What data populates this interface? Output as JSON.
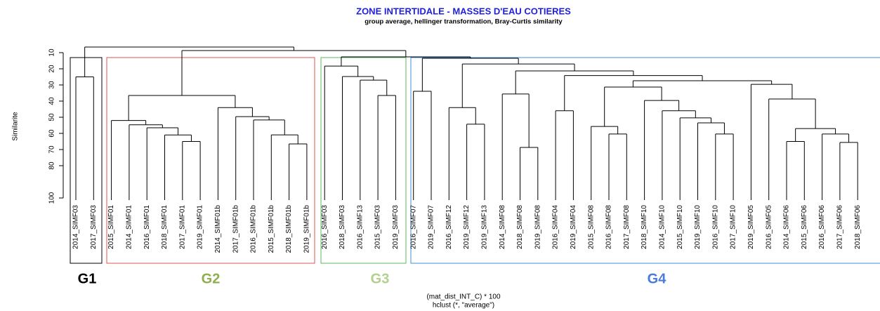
{
  "chart_data": {
    "type": "dendrogram",
    "title": "ZONE INTERTIDALE - MASSES D'EAU COTIERES",
    "subtitle": "group average, hellinger transformation, Bray-Curtis similarity",
    "y_label": "Similarite",
    "x_label": "(mat_dist_INT_C) * 100",
    "x_sublabel": "hclust (*, \"average\")",
    "ylim": [
      5,
      100
    ],
    "yticks": [
      10,
      20,
      30,
      40,
      50,
      60,
      70,
      80,
      100
    ],
    "color": "#000000",
    "title_color": "#1f1fe0",
    "groups": [
      {
        "label": "G1",
        "color": "#000000"
      },
      {
        "label": "G2",
        "color": "#8fae4e"
      },
      {
        "label": "G3",
        "color": "#b3d08f"
      },
      {
        "label": "G4",
        "color": "#4a7bd8"
      }
    ],
    "tree": {
      "height": 6.5,
      "children": [
        {
          "height": 25,
          "children": [
            "2014_SIMF03",
            "2017_SIMF03"
          ]
        },
        {
          "height": 8.7,
          "children": [
            {
              "height": 36.5,
              "children": [
                {
                  "height": 52,
                  "children": [
                    "2015_SIMF01",
                    {
                      "height": 54.7,
                      "children": [
                        "2014_SIMF01",
                        {
                          "height": 56.5,
                          "children": [
                            "2016_SIMF01",
                            {
                              "height": 61,
                              "children": [
                                "2018_SIMF01",
                                {
                                  "height": 65,
                                  "children": [
                                    "2017_SIMF01",
                                    "2019_SIMF01"
                                  ]
                                }
                              ]
                            }
                          ]
                        }
                      ]
                    }
                  ]
                },
                {
                  "height": 44,
                  "children": [
                    "2014_SIMF01b",
                    {
                      "height": 49.6,
                      "children": [
                        "2017_SIMF01b",
                        {
                          "height": 51.7,
                          "children": [
                            "2016_SIMF01b",
                            {
                              "height": 60.9,
                              "children": [
                                "2015_SIMF01b",
                                {
                                  "height": 66.5,
                                  "children": [
                                    "2018_SIMF01b",
                                    "2019_SIMF01b"
                                  ]
                                }
                              ]
                            }
                          ]
                        }
                      ]
                    }
                  ]
                }
              ]
            },
            {
              "height": 12.6,
              "children": [
                {
                  "height": 18.3,
                  "children": [
                    "2016_SIMF03",
                    {
                      "height": 24.8,
                      "children": [
                        "2018_SIMF03",
                        {
                          "height": 27,
                          "children": [
                            "2016_SIMF13",
                            {
                              "height": 36.5,
                              "children": [
                                "2015_SIMF03",
                                "2019_SIMF03"
                              ]
                            }
                          ]
                        }
                      ]
                    }
                  ]
                },
                {
                  "height": 13.5,
                  "children": [
                    {
                      "height": 33.9,
                      "children": [
                        "2016_SIMF07",
                        "2019_SIMF07"
                      ]
                    },
                    {
                      "height": 17,
                      "children": [
                        {
                          "height": 44,
                          "children": [
                            "2016_SIMF12",
                            {
                              "height": 54.3,
                              "children": [
                                "2019_SIMF12",
                                "2019_SIMF13"
                              ]
                            }
                          ]
                        },
                        {
                          "height": 21.3,
                          "children": [
                            {
                              "height": 35.6,
                              "children": [
                                "2014_SIMF08",
                                {
                                  "height": 68.7,
                                  "children": [
                                    "2018_SIMF08",
                                    "2019_SIMF08"
                                  ]
                                }
                              ]
                            },
                            {
                              "height": 24.2,
                              "children": [
                                {
                                  "height": 46,
                                  "children": [
                                    "2016_SIMF04",
                                    "2019_SIMF04"
                                  ]
                                },
                                {
                                  "height": 27.4,
                                  "children": [
                                    {
                                      "height": 31.3,
                                      "children": [
                                        {
                                          "height": 55.7,
                                          "children": [
                                            "2015_SIMF08",
                                            {
                                              "height": 60.4,
                                              "children": [
                                                "2016_SIMF08",
                                                "2017_SIMF08"
                                              ]
                                            }
                                          ]
                                        },
                                        {
                                          "height": 39.6,
                                          "children": [
                                            "2018_SIMF10",
                                            {
                                              "height": 46,
                                              "children": [
                                                "2014_SIMF10",
                                                {
                                                  "height": 50.4,
                                                  "children": [
                                                    "2015_SIMF10",
                                                    {
                                                      "height": 53.5,
                                                      "children": [
                                                        "2019_SIMF10",
                                                        {
                                                          "height": 60.4,
                                                          "children": [
                                                            "2016_SIMF10",
                                                            "2017_SIMF10"
                                                          ]
                                                        }
                                                      ]
                                                    }
                                                  ]
                                                }
                                              ]
                                            }
                                          ]
                                        }
                                      ]
                                    },
                                    {
                                      "height": 29.6,
                                      "children": [
                                        "2019_SIMF05",
                                        {
                                          "height": 38.7,
                                          "children": [
                                            "2016_SIMF05",
                                            {
                                              "height": 57,
                                              "children": [
                                                {
                                                  "height": 65,
                                                  "children": [
                                                    "2014_SIMF06",
                                                    "2015_SIMF06"
                                                  ]
                                                },
                                                {
                                                  "height": 60.4,
                                                  "children": [
                                                    "2016_SIMF06",
                                                    {
                                                      "height": 65.6,
                                                      "children": [
                                                        "2017_SIMF06",
                                                        "2018_SIMF06"
                                                      ]
                                                    }
                                                  ]
                                                }
                                              ]
                                            }
                                          ]
                                        }
                                      ]
                                    }
                                  ]
                                }
                              ]
                            }
                          ]
                        }
                      ]
                    }
                  ]
                }
              ]
            }
          ]
        }
      ]
    }
  }
}
